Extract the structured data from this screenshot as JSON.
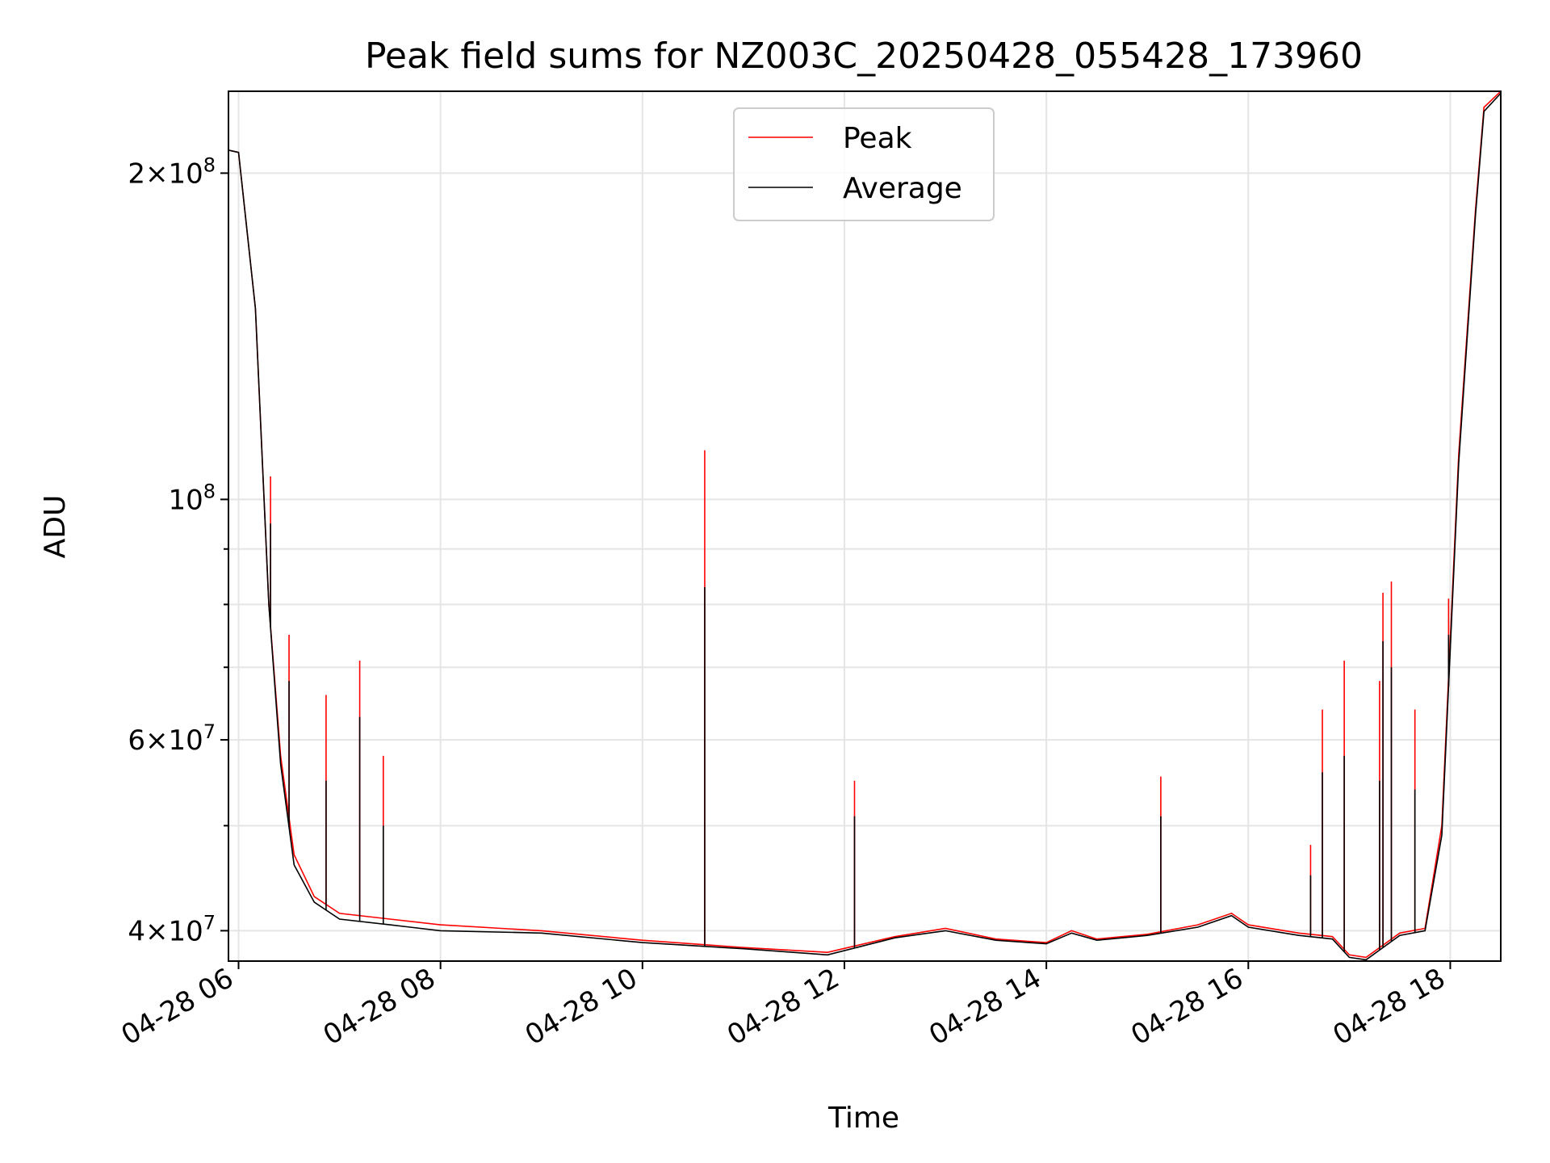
{
  "colors": {
    "peak": "#ff0000",
    "average": "#000000",
    "grid": "#e5e5e5",
    "background": "#ffffff"
  },
  "chart_data": {
    "type": "line",
    "title": "Peak field sums for NZ003C_20250428_055428_173960",
    "xlabel": "Time",
    "ylabel": "ADU",
    "yscale": "log",
    "ylim": [
      37500000,
      238000000
    ],
    "xlim": [
      "2025-04-28 05:54",
      "2025-04-28 18:30"
    ],
    "grid": true,
    "legend_position": "upper center",
    "x_tick_labels": [
      "04-28 06",
      "04-28 08",
      "04-28 10",
      "04-28 12",
      "04-28 14",
      "04-28 16",
      "04-28 18"
    ],
    "y_tick_labels": [
      {
        "value": 40000000,
        "mantissa": "4",
        "exponent": "7"
      },
      {
        "value": 60000000,
        "mantissa": "6",
        "exponent": "7"
      },
      {
        "value": 100000000,
        "mantissa": "",
        "exponent": "8"
      },
      {
        "value": 200000000,
        "mantissa": "2",
        "exponent": "8"
      }
    ],
    "series": [
      {
        "name": "Peak",
        "x": [
          "2025-04-28 05:54",
          "2025-04-28 06:00",
          "2025-04-28 06:10",
          "2025-04-28 06:18",
          "2025-04-28 06:25",
          "2025-04-28 06:33",
          "2025-04-28 06:45",
          "2025-04-28 07:00",
          "2025-04-28 07:30",
          "2025-04-28 08:00",
          "2025-04-28 09:00",
          "2025-04-28 10:00",
          "2025-04-28 11:00",
          "2025-04-28 11:50",
          "2025-04-28 12:30",
          "2025-04-28 13:00",
          "2025-04-28 13:30",
          "2025-04-28 14:00",
          "2025-04-28 14:15",
          "2025-04-28 14:30",
          "2025-04-28 15:00",
          "2025-04-28 15:30",
          "2025-04-28 15:50",
          "2025-04-28 16:00",
          "2025-04-28 16:30",
          "2025-04-28 16:50",
          "2025-04-28 17:00",
          "2025-04-28 17:10",
          "2025-04-28 17:30",
          "2025-04-28 17:45",
          "2025-04-28 17:55",
          "2025-04-28 18:05",
          "2025-04-28 18:15",
          "2025-04-28 18:20",
          "2025-04-28 18:30"
        ],
        "y": [
          210000000,
          209000000,
          150000000,
          80000000,
          58000000,
          47000000,
          43000000,
          41500000,
          41000000,
          40500000,
          40000000,
          39200000,
          38600000,
          38200000,
          39500000,
          40200000,
          39300000,
          39000000,
          40000000,
          39300000,
          39700000,
          40500000,
          41500000,
          40500000,
          39800000,
          39500000,
          38000000,
          37800000,
          39800000,
          40200000,
          50000000,
          110000000,
          185000000,
          230000000,
          238000000
        ],
        "spikes": [
          {
            "x": "2025-04-28 06:19",
            "y": 105000000
          },
          {
            "x": "2025-04-28 06:30",
            "y": 75000000
          },
          {
            "x": "2025-04-28 06:52",
            "y": 66000000
          },
          {
            "x": "2025-04-28 07:12",
            "y": 71000000
          },
          {
            "x": "2025-04-28 07:26",
            "y": 58000000
          },
          {
            "x": "2025-04-28 10:37",
            "y": 111000000
          },
          {
            "x": "2025-04-28 12:06",
            "y": 55000000
          },
          {
            "x": "2025-04-28 15:08",
            "y": 55500000
          },
          {
            "x": "2025-04-28 16:37",
            "y": 48000000
          },
          {
            "x": "2025-04-28 16:44",
            "y": 64000000
          },
          {
            "x": "2025-04-28 16:57",
            "y": 71000000
          },
          {
            "x": "2025-04-28 17:18",
            "y": 68000000
          },
          {
            "x": "2025-04-28 17:20",
            "y": 82000000
          },
          {
            "x": "2025-04-28 17:25",
            "y": 84000000
          },
          {
            "x": "2025-04-28 17:39",
            "y": 64000000
          },
          {
            "x": "2025-04-28 17:59",
            "y": 81000000
          }
        ]
      },
      {
        "name": "Average",
        "x": [
          "2025-04-28 05:54",
          "2025-04-28 06:00",
          "2025-04-28 06:10",
          "2025-04-28 06:18",
          "2025-04-28 06:25",
          "2025-04-28 06:33",
          "2025-04-28 06:45",
          "2025-04-28 07:00",
          "2025-04-28 07:30",
          "2025-04-28 08:00",
          "2025-04-28 09:00",
          "2025-04-28 10:00",
          "2025-04-28 11:00",
          "2025-04-28 11:50",
          "2025-04-28 12:30",
          "2025-04-28 13:00",
          "2025-04-28 13:30",
          "2025-04-28 14:00",
          "2025-04-28 14:15",
          "2025-04-28 14:30",
          "2025-04-28 15:00",
          "2025-04-28 15:30",
          "2025-04-28 15:50",
          "2025-04-28 16:00",
          "2025-04-28 16:30",
          "2025-04-28 16:50",
          "2025-04-28 17:00",
          "2025-04-28 17:10",
          "2025-04-28 17:30",
          "2025-04-28 17:45",
          "2025-04-28 17:55",
          "2025-04-28 18:05",
          "2025-04-28 18:15",
          "2025-04-28 18:20",
          "2025-04-28 18:30"
        ],
        "y": [
          210000000,
          209000000,
          150000000,
          80000000,
          57000000,
          46000000,
          42500000,
          41000000,
          40500000,
          40000000,
          39800000,
          39000000,
          38500000,
          38000000,
          39400000,
          40000000,
          39200000,
          38900000,
          39800000,
          39200000,
          39600000,
          40300000,
          41300000,
          40300000,
          39600000,
          39300000,
          37800000,
          37600000,
          39600000,
          40000000,
          49000000,
          108000000,
          183000000,
          228000000,
          237000000
        ],
        "spikes": [
          {
            "x": "2025-04-28 06:19",
            "y": 95000000
          },
          {
            "x": "2025-04-28 06:30",
            "y": 68000000
          },
          {
            "x": "2025-04-28 06:52",
            "y": 55000000
          },
          {
            "x": "2025-04-28 07:12",
            "y": 63000000
          },
          {
            "x": "2025-04-28 07:26",
            "y": 50000000
          },
          {
            "x": "2025-04-28 10:37",
            "y": 83000000
          },
          {
            "x": "2025-04-28 12:06",
            "y": 51000000
          },
          {
            "x": "2025-04-28 15:08",
            "y": 51000000
          },
          {
            "x": "2025-04-28 16:37",
            "y": 45000000
          },
          {
            "x": "2025-04-28 16:44",
            "y": 56000000
          },
          {
            "x": "2025-04-28 16:57",
            "y": 58000000
          },
          {
            "x": "2025-04-28 17:18",
            "y": 55000000
          },
          {
            "x": "2025-04-28 17:20",
            "y": 74000000
          },
          {
            "x": "2025-04-28 17:25",
            "y": 70000000
          },
          {
            "x": "2025-04-28 17:39",
            "y": 54000000
          },
          {
            "x": "2025-04-28 17:59",
            "y": 75000000
          }
        ]
      }
    ]
  }
}
